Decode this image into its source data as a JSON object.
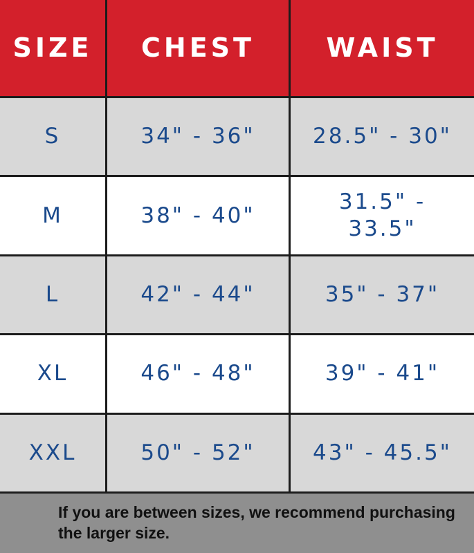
{
  "colors": {
    "header_bg": "#d3202b",
    "header_text": "#ffffff",
    "value_text": "#1b4a8c",
    "row_alt": "#d8d8d8",
    "row": "#ffffff",
    "footer_bg": "#8f8f8f"
  },
  "table": {
    "headers": [
      "SIZE",
      "CHEST",
      "WAIST"
    ],
    "rows": [
      [
        "S",
        "34\" - 36\"",
        "28.5\" - 30\""
      ],
      [
        "M",
        "38\" - 40\"",
        "31.5\" - 33.5\""
      ],
      [
        "L",
        "42\" - 44\"",
        "35\" - 37\""
      ],
      [
        "XL",
        "46\" - 48\"",
        "39\" - 41\""
      ],
      [
        "XXL",
        "50\" - 52\"",
        "43\" - 45.5\""
      ]
    ]
  },
  "footer": {
    "note": "If you are between sizes, we recommend purchasing the larger size."
  }
}
